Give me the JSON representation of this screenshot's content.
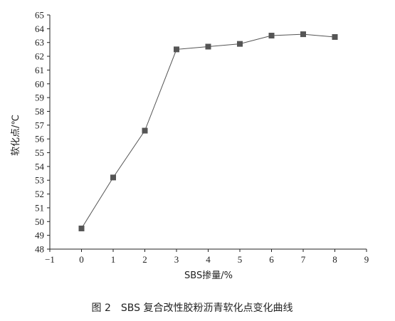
{
  "chart_data": {
    "type": "line",
    "x": [
      0,
      1,
      2,
      3,
      4,
      5,
      6,
      7,
      8
    ],
    "series": [
      {
        "values": [
          49.5,
          53.2,
          56.6,
          62.5,
          62.7,
          62.9,
          63.5,
          63.6,
          63.4
        ]
      }
    ],
    "xlabel": "SBS掺量/%",
    "ylabel": "软化点/℃",
    "xlim": [
      -1,
      9
    ],
    "ylim": [
      48,
      65
    ],
    "xticks": [
      "-1",
      "0",
      "1",
      "2",
      "3",
      "4",
      "5",
      "6",
      "7",
      "8",
      "9"
    ],
    "yticks": [
      "48",
      "49",
      "50",
      "51",
      "52",
      "53",
      "54",
      "55",
      "56",
      "57",
      "58",
      "59",
      "60",
      "61",
      "62",
      "63",
      "64",
      "65"
    ],
    "grid": false,
    "legend": "none",
    "marker": "square",
    "line_color": "#555555",
    "marker_color": "#555555"
  },
  "caption": "图 2　SBS 复合改性胶粉沥青软化点变化曲线"
}
